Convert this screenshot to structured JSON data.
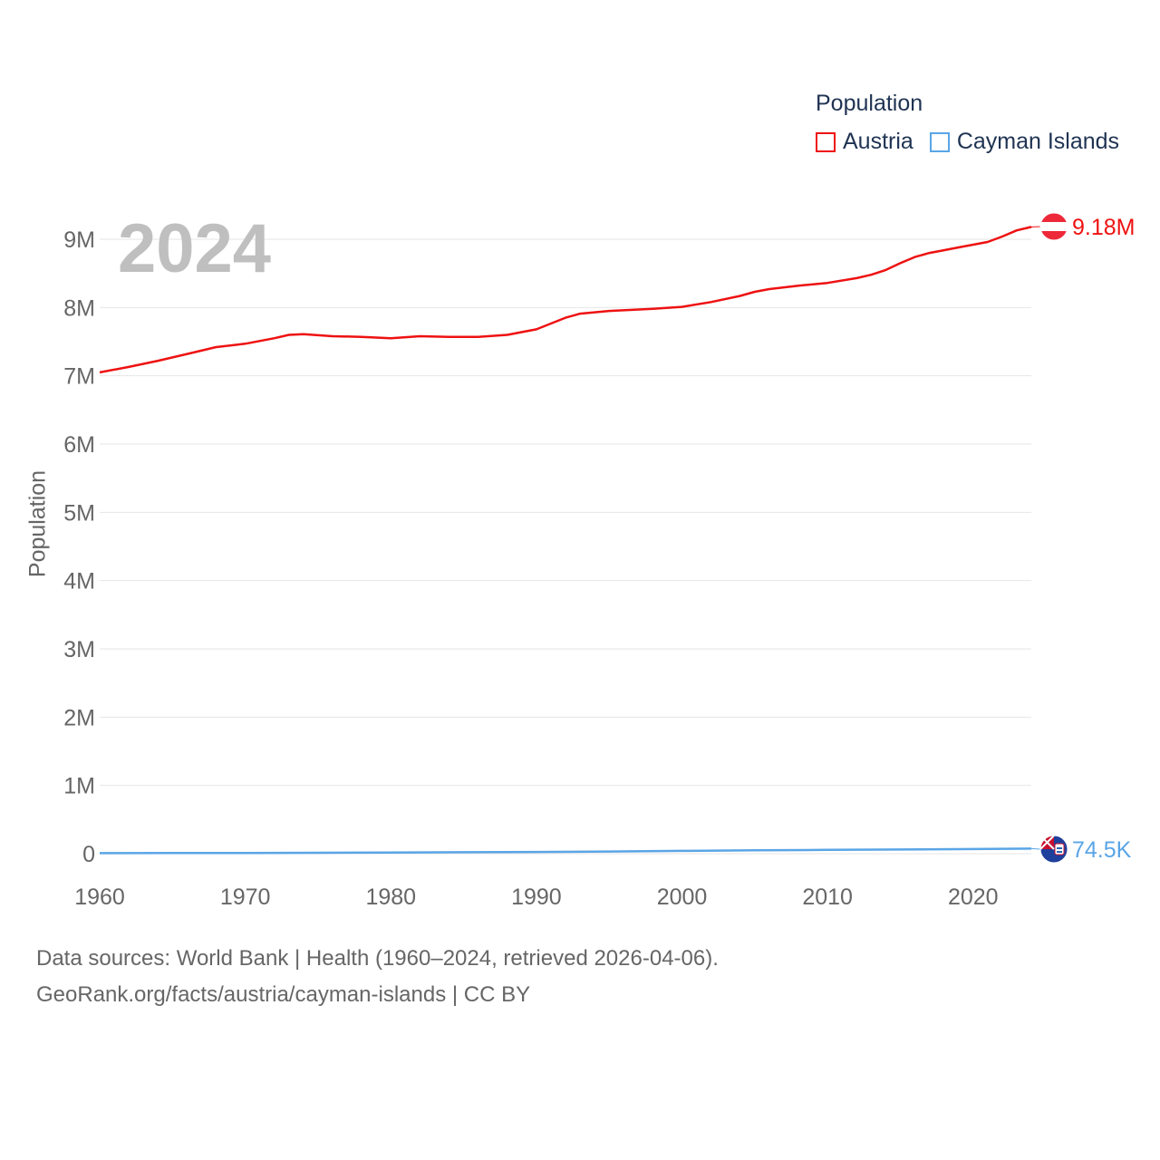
{
  "legend": {
    "title": "Population",
    "items": [
      {
        "label": "Austria",
        "color": "#ee1111"
      },
      {
        "label": "Cayman Islands",
        "color": "#5aa5e6"
      }
    ]
  },
  "year_label": "2024",
  "source": {
    "line1": "Data sources: World Bank | Health (1960–2024, retrieved 2026-04-06).",
    "line2": "GeoRank.org/facts/austria/cayman-islands | CC BY"
  },
  "chart_data": {
    "type": "line",
    "title": "Population",
    "xlabel": "",
    "ylabel": "Population",
    "xlim": [
      1960,
      2024
    ],
    "ylim": [
      0,
      9000000
    ],
    "x_ticks": [
      1960,
      1970,
      1980,
      1990,
      2000,
      2010,
      2020
    ],
    "y_ticks": [
      {
        "value": 0,
        "label": "0"
      },
      {
        "value": 1000000,
        "label": "1M"
      },
      {
        "value": 2000000,
        "label": "2M"
      },
      {
        "value": 3000000,
        "label": "3M"
      },
      {
        "value": 4000000,
        "label": "4M"
      },
      {
        "value": 5000000,
        "label": "5M"
      },
      {
        "value": 6000000,
        "label": "6M"
      },
      {
        "value": 7000000,
        "label": "7M"
      },
      {
        "value": 8000000,
        "label": "8M"
      },
      {
        "value": 9000000,
        "label": "9M"
      }
    ],
    "grid": true,
    "series": [
      {
        "name": "Austria",
        "color": "#ee1111",
        "end_label": "9.18M",
        "flag_icon": "austria-flag-icon",
        "points": [
          [
            1960,
            7050000
          ],
          [
            1962,
            7130000
          ],
          [
            1964,
            7220000
          ],
          [
            1966,
            7320000
          ],
          [
            1968,
            7420000
          ],
          [
            1970,
            7470000
          ],
          [
            1972,
            7550000
          ],
          [
            1973,
            7600000
          ],
          [
            1974,
            7610000
          ],
          [
            1976,
            7580000
          ],
          [
            1978,
            7570000
          ],
          [
            1980,
            7550000
          ],
          [
            1982,
            7580000
          ],
          [
            1984,
            7570000
          ],
          [
            1986,
            7570000
          ],
          [
            1988,
            7600000
          ],
          [
            1990,
            7680000
          ],
          [
            1992,
            7850000
          ],
          [
            1993,
            7910000
          ],
          [
            1995,
            7950000
          ],
          [
            1998,
            7980000
          ],
          [
            2000,
            8010000
          ],
          [
            2002,
            8080000
          ],
          [
            2004,
            8170000
          ],
          [
            2005,
            8230000
          ],
          [
            2006,
            8270000
          ],
          [
            2008,
            8320000
          ],
          [
            2010,
            8360000
          ],
          [
            2012,
            8430000
          ],
          [
            2013,
            8480000
          ],
          [
            2014,
            8550000
          ],
          [
            2015,
            8650000
          ],
          [
            2016,
            8740000
          ],
          [
            2017,
            8800000
          ],
          [
            2018,
            8840000
          ],
          [
            2019,
            8880000
          ],
          [
            2020,
            8920000
          ],
          [
            2021,
            8960000
          ],
          [
            2022,
            9040000
          ],
          [
            2023,
            9130000
          ],
          [
            2024,
            9180000
          ]
        ]
      },
      {
        "name": "Cayman Islands",
        "color": "#5aa5e6",
        "end_label": "74.5K",
        "flag_icon": "cayman-islands-flag-icon",
        "points": [
          [
            1960,
            7900
          ],
          [
            1965,
            8800
          ],
          [
            1970,
            10200
          ],
          [
            1975,
            13500
          ],
          [
            1980,
            17100
          ],
          [
            1985,
            21300
          ],
          [
            1990,
            25400
          ],
          [
            1995,
            31600
          ],
          [
            2000,
            41700
          ],
          [
            2005,
            48600
          ],
          [
            2010,
            55500
          ],
          [
            2015,
            60900
          ],
          [
            2020,
            68100
          ],
          [
            2024,
            74500
          ]
        ]
      }
    ]
  }
}
